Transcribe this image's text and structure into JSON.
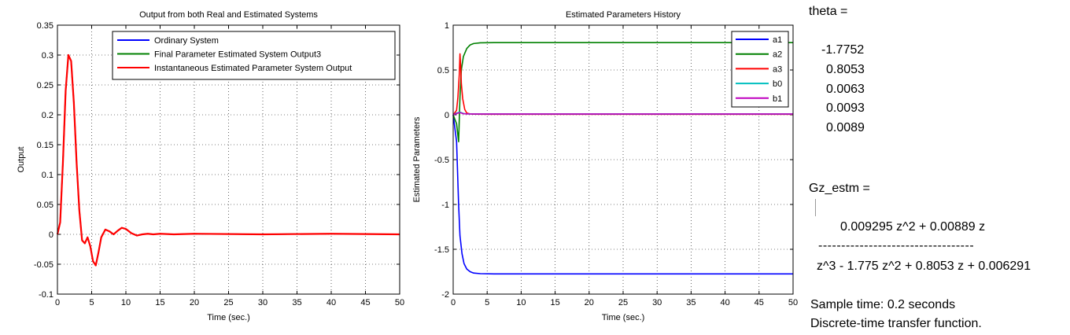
{
  "chart_data": [
    {
      "type": "line",
      "title": "Output from both Real and Estimated Systems",
      "xlabel": "Time (sec.)",
      "ylabel": "Output",
      "xlim": [
        0,
        50
      ],
      "ylim": [
        -0.1,
        0.35
      ],
      "xticks": [
        "0",
        "5",
        "10",
        "15",
        "20",
        "25",
        "30",
        "35",
        "40",
        "45",
        "50"
      ],
      "yticks": [
        "-0.1",
        "-0.05",
        "0",
        "0.05",
        "0.1",
        "0.15",
        "0.2",
        "0.25",
        "0.3",
        "0.35"
      ],
      "grid": true,
      "legend_position": "top-right",
      "series": [
        {
          "name": "Ordinary System",
          "color": "#0000ff",
          "x": [
            0,
            0.4,
            0.8,
            1.2,
            1.6,
            2.0,
            2.4,
            2.8,
            3.2,
            3.6,
            4.0,
            4.4,
            4.8,
            5.2,
            5.6,
            6.0,
            6.4,
            7.0,
            7.6,
            8.2,
            8.8,
            9.4,
            10.0,
            10.8,
            11.6,
            12.4,
            13.2,
            14.0,
            15.0,
            17.0,
            20.0,
            30.0,
            40.0,
            50.0
          ],
          "y": [
            0,
            0.02,
            0.12,
            0.24,
            0.3,
            0.29,
            0.22,
            0.12,
            0.04,
            -0.01,
            -0.015,
            -0.005,
            -0.02,
            -0.045,
            -0.052,
            -0.03,
            -0.005,
            0.008,
            0.005,
            0.0,
            0.006,
            0.011,
            0.009,
            0.002,
            -0.002,
            0.0,
            0.001,
            0.0,
            0.001,
            0.0,
            0.001,
            0.0,
            0.001,
            0.0
          ]
        },
        {
          "name": "Final Parameter Estimated System Output3",
          "color": "#008000",
          "x": [
            0,
            0.4,
            0.8,
            1.2,
            1.6,
            2.0,
            2.4,
            2.8,
            3.2,
            3.6,
            4.0,
            4.4,
            4.8,
            5.2,
            5.6,
            6.0,
            6.4,
            7.0,
            7.6,
            8.2,
            8.8,
            9.4,
            10.0,
            10.8,
            11.6,
            12.4,
            13.2,
            14.0,
            15.0,
            17.0,
            20.0,
            30.0,
            40.0,
            50.0
          ],
          "y": [
            0,
            0.02,
            0.12,
            0.24,
            0.3,
            0.29,
            0.22,
            0.12,
            0.04,
            -0.01,
            -0.015,
            -0.005,
            -0.02,
            -0.045,
            -0.052,
            -0.03,
            -0.005,
            0.008,
            0.005,
            0.0,
            0.006,
            0.011,
            0.009,
            0.002,
            -0.002,
            0.0,
            0.001,
            0.0,
            0.001,
            0.0,
            0.001,
            0.0,
            0.001,
            0.0
          ]
        },
        {
          "name": "Instantaneous Estimated Parameter System Output",
          "color": "#ff0000",
          "x": [
            0,
            0.4,
            0.8,
            1.2,
            1.6,
            2.0,
            2.4,
            2.8,
            3.2,
            3.6,
            4.0,
            4.4,
            4.8,
            5.2,
            5.6,
            6.0,
            6.4,
            7.0,
            7.6,
            8.2,
            8.8,
            9.4,
            10.0,
            10.8,
            11.6,
            12.4,
            13.2,
            14.0,
            15.0,
            17.0,
            20.0,
            30.0,
            40.0,
            50.0
          ],
          "y": [
            0,
            0.02,
            0.12,
            0.24,
            0.3,
            0.29,
            0.22,
            0.12,
            0.04,
            -0.01,
            -0.015,
            -0.005,
            -0.02,
            -0.045,
            -0.052,
            -0.03,
            -0.005,
            0.008,
            0.005,
            0.0,
            0.006,
            0.011,
            0.009,
            0.002,
            -0.002,
            0.0,
            0.001,
            0.0,
            0.001,
            0.0,
            0.001,
            0.0,
            0.001,
            0.0
          ]
        }
      ]
    },
    {
      "type": "line",
      "title": "Estimated Parameters History",
      "xlabel": "Time (sec.)",
      "ylabel": "Estimated Parameters",
      "xlim": [
        0,
        50
      ],
      "ylim": [
        -2,
        1
      ],
      "xticks": [
        "0",
        "5",
        "10",
        "15",
        "20",
        "25",
        "30",
        "35",
        "40",
        "45",
        "50"
      ],
      "yticks": [
        "-2",
        "-1.5",
        "-1",
        "-0.5",
        "0",
        "0.5",
        "1"
      ],
      "grid": true,
      "legend_position": "top-right",
      "series": [
        {
          "name": "a1",
          "color": "#0000ff",
          "x": [
            0,
            0.5,
            0.8,
            1.0,
            1.3,
            1.6,
            2.0,
            2.5,
            3.0,
            4.0,
            6.0,
            10.0,
            20.0,
            50.0
          ],
          "y": [
            0,
            -0.3,
            -1.0,
            -1.35,
            -1.55,
            -1.66,
            -1.72,
            -1.75,
            -1.765,
            -1.772,
            -1.775,
            -1.775,
            -1.775,
            -1.775
          ]
        },
        {
          "name": "a2",
          "color": "#008000",
          "x": [
            0,
            0.5,
            0.8,
            1.0,
            1.2,
            1.5,
            2.0,
            2.5,
            3.0,
            4.0,
            6.0,
            10.0,
            20.0,
            50.0
          ],
          "y": [
            0,
            -0.1,
            -0.3,
            0.2,
            0.5,
            0.65,
            0.74,
            0.78,
            0.795,
            0.803,
            0.805,
            0.805,
            0.805,
            0.805
          ]
        },
        {
          "name": "a3",
          "color": "#ff0000",
          "x": [
            0,
            0.5,
            0.7,
            0.9,
            1.0,
            1.1,
            1.2,
            1.4,
            1.7,
            2.0,
            2.5,
            3.0,
            5.0,
            50.0
          ],
          "y": [
            0,
            0.05,
            0.2,
            0.45,
            0.68,
            0.55,
            0.35,
            0.18,
            0.06,
            0.02,
            0.01,
            0.007,
            0.006,
            0.006
          ]
        },
        {
          "name": "b0",
          "color": "#00bfbf",
          "x": [
            0,
            0.5,
            1.0,
            1.5,
            2.0,
            3.0,
            50.0
          ],
          "y": [
            0,
            0.02,
            0.03,
            0.015,
            0.01,
            0.009,
            0.009
          ]
        },
        {
          "name": "b1",
          "color": "#bf00bf",
          "x": [
            0,
            0.5,
            1.0,
            1.5,
            2.0,
            3.0,
            50.0
          ],
          "y": [
            0,
            0.015,
            0.025,
            0.012,
            0.01,
            0.009,
            0.009
          ]
        }
      ]
    }
  ],
  "console": {
    "theta_label": "theta =",
    "theta_values": [
      "-1.7752",
      "0.8053",
      "0.0063",
      "0.0093",
      "0.0089"
    ],
    "gz_label": "Gz_estm =",
    "numerator": "0.009295 z^2 + 0.00889 z",
    "divider": "----------------------------------",
    "denominator": "z^3 - 1.775 z^2 + 0.8053 z + 0.006291",
    "sample_time": "Sample time: 0.2 seconds",
    "tf_type": "Discrete-time transfer function."
  }
}
